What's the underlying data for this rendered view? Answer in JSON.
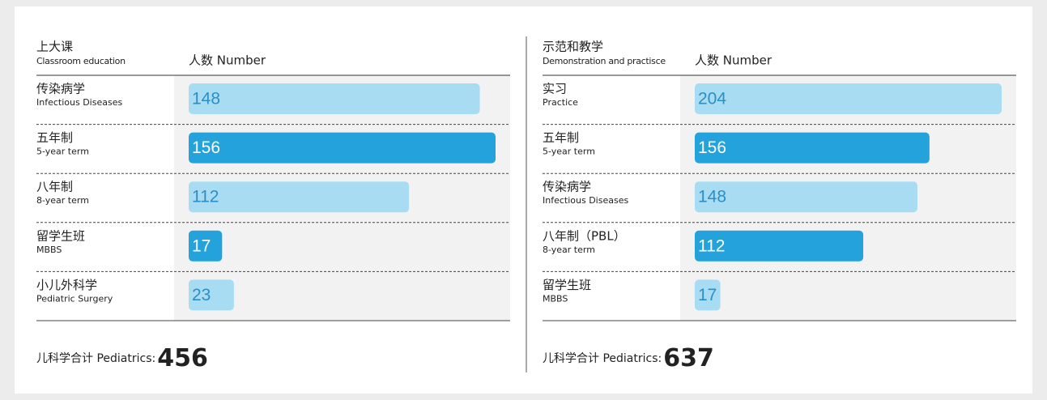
{
  "chart_data": [
    {
      "type": "bar",
      "title": "上大课",
      "subtitle": "Classroom education",
      "value_header": "人数 Number",
      "categories": [
        "传染病学",
        "五年制",
        "八年制",
        "留学生班",
        "小儿外科学"
      ],
      "categories_en": [
        "Infectious Diseases",
        "5-year term",
        "8-year term",
        "MBBS",
        "Pediatric Surgery"
      ],
      "values": [
        148,
        156,
        112,
        17,
        23
      ],
      "colors": [
        "#a8dcf3",
        "#23a2dc",
        "#a8dcf3",
        "#23a2dc",
        "#a8dcf3"
      ],
      "total_label": "儿科学合计 Pediatrics:",
      "total": 456
    },
    {
      "type": "bar",
      "title": "示范和教学",
      "subtitle": "Demonstration and practisce",
      "value_header": "人数 Number",
      "categories": [
        "实习",
        "五年制",
        "传染病学",
        "八年制（PBL）",
        "留学生班"
      ],
      "categories_en": [
        "Practice",
        "5-year term",
        "Infectious Diseases",
        "8-year term",
        "MBBS"
      ],
      "values": [
        204,
        156,
        148,
        112,
        17
      ],
      "colors": [
        "#a8dcf3",
        "#23a2dc",
        "#a8dcf3",
        "#23a2dc",
        "#a8dcf3"
      ],
      "total_label": "儿科学合计 Pediatrics:",
      "total": 637
    }
  ]
}
